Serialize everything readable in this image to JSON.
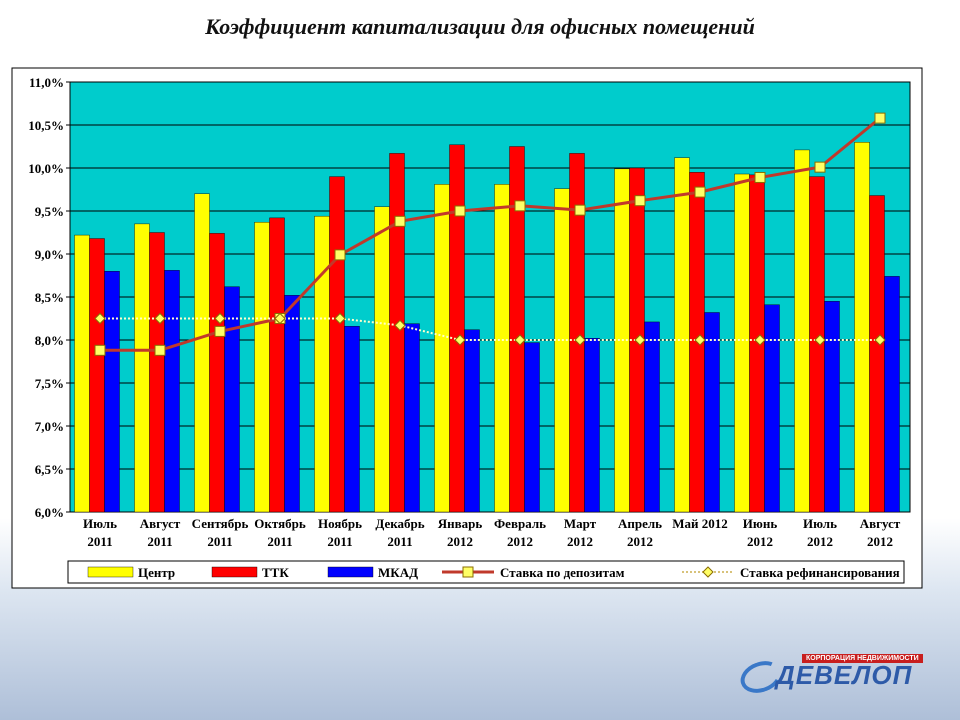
{
  "title": "Коэффициент капитализации для офисных помещений",
  "brand": {
    "tagline": "КОРПОРАЦИЯ НЕДВИЖИМОСТИ",
    "name": "ДЕВЕЛОП"
  },
  "chart_data": {
    "type": "bar",
    "plot_background": "#00cccc",
    "ylim": [
      6.0,
      11.0
    ],
    "y_ticks": [
      "6,0%",
      "6,5%",
      "7,0%",
      "7,5%",
      "8,0%",
      "8,5%",
      "9,0%",
      "9,5%",
      "10,0%",
      "10,5%",
      "11,0%"
    ],
    "y_tick_values": [
      6.0,
      6.5,
      7.0,
      7.5,
      8.0,
      8.5,
      9.0,
      9.5,
      10.0,
      10.5,
      11.0
    ],
    "grid": true,
    "legend_position": "bottom",
    "categories": [
      [
        "Июль",
        "2011"
      ],
      [
        "Август",
        "2011"
      ],
      [
        "Сентябрь",
        "2011"
      ],
      [
        "Октябрь",
        "2011"
      ],
      [
        "Ноябрь",
        "2011"
      ],
      [
        "Декабрь",
        "2011"
      ],
      [
        "Январь",
        "2012"
      ],
      [
        "Февраль",
        "2012"
      ],
      [
        "Март",
        "2012"
      ],
      [
        "Апрель",
        "2012"
      ],
      [
        "Май 2012",
        ""
      ],
      [
        "Июнь",
        "2012"
      ],
      [
        "Июль",
        "2012"
      ],
      [
        "Август",
        "2012"
      ]
    ],
    "series": [
      {
        "name": "Центр",
        "type": "bar",
        "color": "#ffff00",
        "values": [
          9.22,
          9.35,
          9.7,
          9.37,
          9.44,
          9.55,
          9.81,
          9.81,
          9.76,
          9.99,
          10.12,
          9.93,
          10.21,
          10.3
        ]
      },
      {
        "name": "ТТК",
        "type": "bar",
        "color": "#ff0000",
        "values": [
          9.18,
          9.25,
          9.24,
          9.42,
          9.9,
          10.17,
          10.27,
          10.25,
          10.17,
          10.0,
          9.95,
          9.92,
          9.9,
          9.68
        ]
      },
      {
        "name": "МКАД",
        "type": "bar",
        "color": "#0000ff",
        "values": [
          8.8,
          8.81,
          8.62,
          8.52,
          8.16,
          8.19,
          8.12,
          7.97,
          8.02,
          8.21,
          8.32,
          8.41,
          8.45,
          8.74
        ]
      },
      {
        "name": "Ставка по депозитам",
        "type": "line",
        "color": "#c0392b",
        "marker_color": "#ffff66",
        "values": [
          7.88,
          7.88,
          8.1,
          8.25,
          8.99,
          9.38,
          9.5,
          9.56,
          9.51,
          9.62,
          9.72,
          9.89,
          10.01,
          10.58
        ]
      },
      {
        "name": "Ставка рефинансирования",
        "type": "line",
        "color": "#ffffcc",
        "marker_color": "#ffff66",
        "values": [
          8.25,
          8.25,
          8.25,
          8.25,
          8.25,
          8.17,
          8.0,
          8.0,
          8.0,
          8.0,
          8.0,
          8.0,
          8.0,
          8.0
        ]
      }
    ]
  }
}
